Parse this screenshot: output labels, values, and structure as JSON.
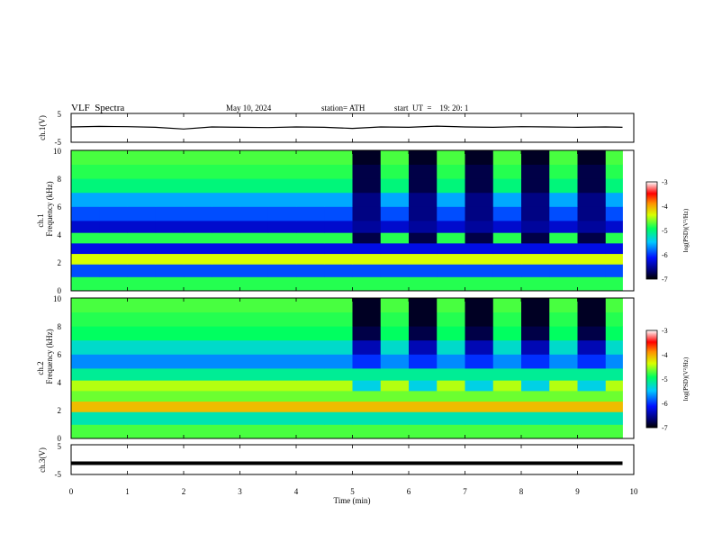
{
  "header": {
    "title": "VLF  Spectra",
    "date": "May 10, 2024",
    "station": "station= ATH",
    "start_ut": "start  UT  =    19: 20: 1"
  },
  "panels": {
    "ch1_voltage": {
      "ylabel": "ch.1(V)",
      "ticks": [
        "5",
        "-5"
      ]
    },
    "ch1_spectrum": {
      "ylabel_top": "ch.1",
      "ylabel_bottom": "Frequency  (kHz)",
      "ticks": [
        "0",
        "2",
        "4",
        "6",
        "8",
        "10"
      ]
    },
    "ch2_spectrum": {
      "ylabel_top": "ch.2",
      "ylabel_bottom": "Frequency  (kHz)",
      "ticks": [
        "0",
        "2",
        "4",
        "6",
        "8",
        "10"
      ]
    },
    "ch3_voltage": {
      "ylabel": "ch.3(V)",
      "ticks": [
        "5",
        "-5"
      ]
    }
  },
  "colorbar": {
    "label": "log(PSD)(V²/Hz)",
    "ticks": [
      "-3",
      "-4",
      "-5",
      "-6",
      "-7"
    ]
  },
  "x_axis": {
    "label": "Time  (min)",
    "ticks": [
      "0",
      "1",
      "2",
      "3",
      "4",
      "5",
      "6",
      "7",
      "8",
      "9",
      "10"
    ]
  },
  "chart_data": [
    {
      "type": "line",
      "name": "ch.1 waveform",
      "xlabel": "",
      "ylabel": "ch.1(V)",
      "xlim": [
        0,
        10
      ],
      "ylim": [
        -5,
        5
      ],
      "x": [
        0,
        0.5,
        1,
        1.5,
        2,
        2.5,
        3,
        3.5,
        4,
        4.5,
        5,
        5.5,
        6,
        6.5,
        7,
        7.5,
        8,
        8.5,
        9,
        9.5,
        9.8
      ],
      "y": [
        0.3,
        0.5,
        0.4,
        0.2,
        -0.4,
        0.3,
        0.2,
        0.1,
        0.3,
        0.2,
        -0.2,
        0.3,
        0.2,
        0.6,
        0.3,
        0.2,
        0.4,
        0.3,
        0.2,
        0.3,
        0.2
      ]
    },
    {
      "type": "heatmap",
      "name": "ch.1 spectrogram",
      "xlabel": "",
      "ylabel": "Frequency  (kHz)",
      "xlim": [
        0,
        9.8
      ],
      "ylim": [
        0,
        10
      ],
      "colorscale_range": [
        -7,
        -3
      ],
      "time_bins_min": [
        0,
        0.5,
        1,
        1.5,
        2,
        2.5,
        3,
        3.5,
        4,
        4.5,
        5,
        5.5,
        6,
        6.5,
        7,
        7.5,
        8,
        8.5,
        9,
        9.5
      ],
      "freq_bands_khz": [
        0.5,
        1.5,
        2.3,
        3,
        3.8,
        4.5,
        5.5,
        6.5,
        7.5,
        8.5,
        9.5
      ],
      "log_psd": [
        [
          -4.8,
          -4.8,
          -4.8,
          -4.8,
          -4.8,
          -4.8,
          -4.8,
          -4.8,
          -4.8,
          -4.8,
          -4.8,
          -4.8,
          -4.8,
          -4.8,
          -4.8,
          -4.8,
          -4.8,
          -4.8,
          -4.8,
          -4.8
        ],
        [
          -5.9,
          -5.9,
          -5.9,
          -5.9,
          -5.9,
          -5.9,
          -5.9,
          -5.9,
          -5.9,
          -5.9,
          -5.9,
          -5.9,
          -5.9,
          -5.9,
          -5.9,
          -5.9,
          -5.9,
          -5.9,
          -5.9,
          -5.9
        ],
        [
          -4.3,
          -4.3,
          -4.3,
          -4.3,
          -4.3,
          -4.3,
          -4.3,
          -4.3,
          -4.3,
          -4.3,
          -4.3,
          -4.3,
          -4.3,
          -4.3,
          -4.3,
          -4.3,
          -4.3,
          -4.3,
          -4.3,
          -4.3
        ],
        [
          -6.2,
          -6.2,
          -6.2,
          -6.2,
          -6.2,
          -6.2,
          -6.2,
          -6.2,
          -6.2,
          -6.2,
          -6.2,
          -6.2,
          -6.2,
          -6.2,
          -6.2,
          -6.2,
          -6.2,
          -6.2,
          -6.2,
          -6.2
        ],
        [
          -4.8,
          -4.8,
          -4.8,
          -4.8,
          -4.8,
          -4.8,
          -4.8,
          -4.8,
          -4.8,
          -4.8,
          -6.8,
          -4.8,
          -6.8,
          -4.8,
          -6.8,
          -4.8,
          -6.8,
          -4.8,
          -6.8,
          -4.8
        ],
        [
          -6.3,
          -6.3,
          -6.3,
          -6.3,
          -6.3,
          -6.3,
          -6.3,
          -6.3,
          -6.3,
          -6.3,
          -6.5,
          -6.3,
          -6.5,
          -6.3,
          -6.5,
          -6.3,
          -6.5,
          -6.3,
          -6.5,
          -6.3
        ],
        [
          -5.9,
          -5.9,
          -5.9,
          -5.9,
          -5.9,
          -5.9,
          -5.9,
          -5.9,
          -5.9,
          -5.9,
          -6.6,
          -5.9,
          -6.6,
          -5.9,
          -6.6,
          -5.9,
          -6.6,
          -5.9,
          -6.6,
          -5.9
        ],
        [
          -5.6,
          -5.6,
          -5.6,
          -5.6,
          -5.6,
          -5.6,
          -5.6,
          -5.6,
          -5.6,
          -5.6,
          -6.6,
          -5.6,
          -6.6,
          -5.6,
          -6.6,
          -5.6,
          -6.6,
          -5.6,
          -6.6,
          -5.6
        ],
        [
          -5.0,
          -5.0,
          -5.0,
          -5.0,
          -5.0,
          -5.0,
          -5.0,
          -5.0,
          -5.0,
          -5.0,
          -6.8,
          -5.0,
          -6.8,
          -5.0,
          -6.8,
          -5.0,
          -6.8,
          -5.0,
          -6.8,
          -5.0
        ],
        [
          -4.8,
          -4.8,
          -4.8,
          -4.8,
          -4.8,
          -4.8,
          -4.8,
          -4.8,
          -4.8,
          -4.8,
          -6.8,
          -4.8,
          -6.8,
          -4.8,
          -6.8,
          -4.8,
          -6.8,
          -4.8,
          -6.8,
          -4.8
        ],
        [
          -4.7,
          -4.7,
          -4.7,
          -4.7,
          -4.7,
          -4.7,
          -4.7,
          -4.7,
          -4.7,
          -4.7,
          -6.9,
          -4.7,
          -6.9,
          -4.7,
          -6.9,
          -4.7,
          -6.9,
          -4.7,
          -6.9,
          -4.7
        ]
      ]
    },
    {
      "type": "heatmap",
      "name": "ch.2 spectrogram",
      "xlabel": "",
      "ylabel": "Frequency  (kHz)",
      "xlim": [
        0,
        9.8
      ],
      "ylim": [
        0,
        10
      ],
      "colorscale_range": [
        -7,
        -3
      ],
      "time_bins_min": [
        0,
        0.5,
        1,
        1.5,
        2,
        2.5,
        3,
        3.5,
        4,
        4.5,
        5,
        5.5,
        6,
        6.5,
        7,
        7.5,
        8,
        8.5,
        9,
        9.5
      ],
      "freq_bands_khz": [
        0.5,
        1.5,
        2.3,
        3,
        3.8,
        4.5,
        5.5,
        6.5,
        7.5,
        8.5,
        9.5
      ],
      "log_psd": [
        [
          -4.7,
          -4.7,
          -4.7,
          -4.7,
          -4.7,
          -4.7,
          -4.7,
          -4.7,
          -4.7,
          -4.7,
          -4.7,
          -4.7,
          -4.7,
          -4.7,
          -4.7,
          -4.7,
          -4.7,
          -4.7,
          -4.7,
          -4.7
        ],
        [
          -5.2,
          -5.2,
          -5.2,
          -5.2,
          -5.2,
          -5.2,
          -5.2,
          -5.2,
          -5.2,
          -5.2,
          -5.2,
          -5.2,
          -5.2,
          -5.2,
          -5.2,
          -5.2,
          -5.2,
          -5.2,
          -5.2,
          -5.2
        ],
        [
          -4.0,
          -4.0,
          -4.0,
          -4.0,
          -4.0,
          -4.0,
          -4.0,
          -4.0,
          -4.0,
          -4.0,
          -4.0,
          -4.0,
          -4.0,
          -4.0,
          -4.0,
          -4.0,
          -4.0,
          -4.0,
          -4.0,
          -4.0
        ],
        [
          -4.6,
          -4.6,
          -4.6,
          -4.6,
          -4.6,
          -4.6,
          -4.6,
          -4.6,
          -4.6,
          -4.6,
          -4.6,
          -4.6,
          -4.6,
          -4.6,
          -4.6,
          -4.6,
          -4.6,
          -4.6,
          -4.6,
          -4.6
        ],
        [
          -4.4,
          -4.4,
          -4.4,
          -4.4,
          -4.4,
          -4.4,
          -4.4,
          -4.4,
          -4.4,
          -4.4,
          -5.4,
          -4.4,
          -5.4,
          -4.4,
          -5.4,
          -4.4,
          -5.4,
          -4.4,
          -5.4,
          -4.4
        ],
        [
          -5.1,
          -5.1,
          -5.1,
          -5.1,
          -5.1,
          -5.1,
          -5.1,
          -5.1,
          -5.1,
          -5.1,
          -5.1,
          -5.1,
          -5.1,
          -5.1,
          -5.1,
          -5.1,
          -5.1,
          -5.1,
          -5.1,
          -5.1
        ],
        [
          -5.7,
          -5.7,
          -5.7,
          -5.7,
          -5.7,
          -5.7,
          -5.7,
          -5.7,
          -5.7,
          -5.7,
          -6.0,
          -5.7,
          -6.0,
          -5.7,
          -6.0,
          -5.7,
          -6.0,
          -5.7,
          -6.0,
          -5.7
        ],
        [
          -5.3,
          -5.3,
          -5.3,
          -5.3,
          -5.3,
          -5.3,
          -5.3,
          -5.3,
          -5.3,
          -5.3,
          -6.4,
          -5.3,
          -6.4,
          -5.3,
          -6.4,
          -5.3,
          -6.4,
          -5.3,
          -6.4,
          -5.3
        ],
        [
          -4.9,
          -4.9,
          -4.9,
          -4.9,
          -4.9,
          -4.9,
          -4.9,
          -4.9,
          -4.9,
          -4.9,
          -6.8,
          -4.9,
          -6.8,
          -4.9,
          -6.8,
          -4.9,
          -6.8,
          -4.9,
          -6.8,
          -4.9
        ],
        [
          -4.8,
          -4.8,
          -4.8,
          -4.8,
          -4.8,
          -4.8,
          -4.8,
          -4.8,
          -4.8,
          -4.8,
          -6.9,
          -4.8,
          -6.9,
          -4.8,
          -6.9,
          -4.8,
          -6.9,
          -4.8,
          -6.9,
          -4.8
        ],
        [
          -4.7,
          -4.7,
          -4.7,
          -4.7,
          -4.7,
          -4.7,
          -4.7,
          -4.7,
          -4.7,
          -4.7,
          -6.9,
          -4.7,
          -6.9,
          -4.7,
          -6.9,
          -4.7,
          -6.9,
          -4.7,
          -6.9,
          -4.7
        ]
      ]
    },
    {
      "type": "line",
      "name": "ch.3 waveform",
      "xlabel": "Time  (min)",
      "ylabel": "ch.3(V)",
      "xlim": [
        0,
        10
      ],
      "ylim": [
        -5,
        5
      ],
      "x": [
        0,
        9.8
      ],
      "y": [
        -1.2,
        -1.2
      ]
    }
  ]
}
